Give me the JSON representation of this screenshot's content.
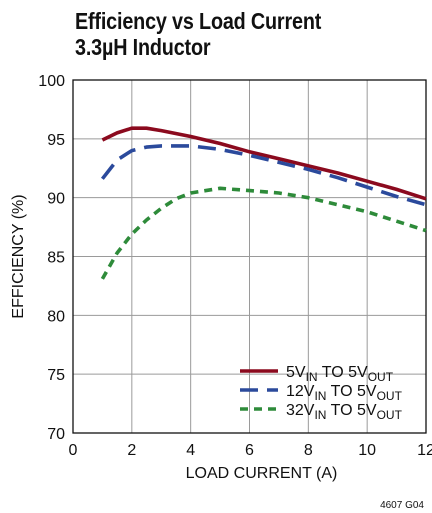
{
  "chart_data": {
    "type": "line",
    "title": "Efficiency vs Load Current",
    "subtitle": "3.3µH Inductor",
    "xlabel": "LOAD CURRENT (A)",
    "ylabel": "EFFICIENCY (%)",
    "xlim": [
      0,
      12
    ],
    "ylim": [
      70,
      100
    ],
    "x_ticks": [
      "0",
      "2",
      "4",
      "6",
      "8",
      "10",
      "12"
    ],
    "y_ticks": [
      "70",
      "75",
      "80",
      "85",
      "90",
      "95",
      "100"
    ],
    "grid": true,
    "legend_position": "bottom-right",
    "footnote": "4607 G04",
    "series": [
      {
        "name": "5VIN TO 5VOUT",
        "legend": {
          "a": "5V",
          "a_sub": "IN",
          "b": " TO 5V",
          "b_sub": "OUT"
        },
        "color": "#8b0a1e",
        "dash": "solid",
        "x": [
          1,
          1.5,
          2,
          2.5,
          3,
          4,
          5,
          6,
          7,
          8,
          9,
          10,
          11,
          12
        ],
        "y": [
          94.9,
          95.5,
          95.9,
          95.9,
          95.7,
          95.2,
          94.6,
          93.9,
          93.3,
          92.7,
          92.1,
          91.4,
          90.7,
          89.9
        ]
      },
      {
        "name": "12VIN TO 5VOUT",
        "legend": {
          "a": "12V",
          "a_sub": "IN",
          "b": " TO 5V",
          "b_sub": "OUT"
        },
        "color": "#2b4a9c",
        "dash": "long",
        "x": [
          1,
          1.5,
          2,
          2.5,
          3,
          4,
          5,
          6,
          7,
          8,
          9,
          10,
          11,
          12
        ],
        "y": [
          91.6,
          93.2,
          94.0,
          94.3,
          94.4,
          94.4,
          94.1,
          93.6,
          93.0,
          92.4,
          91.7,
          90.9,
          90.1,
          89.4
        ]
      },
      {
        "name": "32VIN TO 5VOUT",
        "legend": {
          "a": "32V",
          "a_sub": "IN",
          "b": " TO 5V",
          "b_sub": "OUT"
        },
        "color": "#2e8b3a",
        "dash": "short",
        "x": [
          1,
          1.5,
          2,
          2.5,
          3,
          3.5,
          4,
          5,
          6,
          7,
          8,
          9,
          10,
          11,
          12
        ],
        "y": [
          83.1,
          85.3,
          86.9,
          88.1,
          89.1,
          89.9,
          90.4,
          90.8,
          90.6,
          90.4,
          90.0,
          89.4,
          88.8,
          88.0,
          87.2
        ]
      }
    ]
  }
}
